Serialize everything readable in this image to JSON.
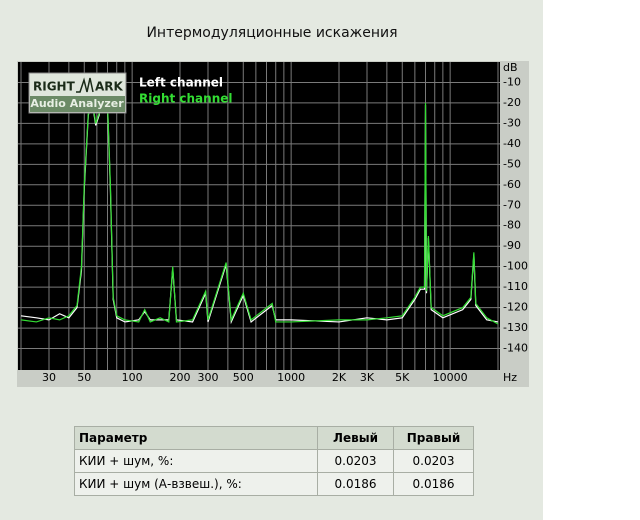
{
  "title": "Интермодуляционные искажения",
  "logo": {
    "word1": "RIGHT",
    "word2": "ARK",
    "subtitle": "Audio Analyzer"
  },
  "chart_data": {
    "type": "line",
    "xscale": "log",
    "grid": true,
    "legend": "top-left",
    "ylabel": "dB",
    "xlabel": "Hz",
    "xlim": [
      20,
      20000
    ],
    "ylim": [
      -150,
      0
    ],
    "xticks": [
      30,
      50,
      100,
      200,
      300,
      500,
      1000,
      {
        "value": 2000,
        "label": "2K"
      },
      {
        "value": 3000,
        "label": "3K"
      },
      {
        "value": 5000,
        "label": "5K"
      },
      10000
    ],
    "minor_xticks": [
      20,
      40,
      60,
      70,
      80,
      90,
      400,
      600,
      700,
      800,
      900,
      4000,
      6000,
      7000,
      8000,
      9000,
      20000
    ],
    "yticks": [
      -10,
      -20,
      -30,
      -40,
      -50,
      -60,
      -70,
      -80,
      -90,
      -100,
      -110,
      -120,
      -130,
      -140
    ],
    "x": [
      20,
      25,
      30,
      35,
      40,
      45,
      48,
      50,
      53,
      56,
      59,
      62,
      66,
      70,
      73,
      76,
      80,
      90,
      110,
      120,
      130,
      150,
      170,
      180,
      190,
      240,
      290,
      300,
      390,
      420,
      500,
      560,
      760,
      800,
      1000,
      2000,
      3000,
      4000,
      5000,
      6000,
      6500,
      6900,
      7000,
      7100,
      7300,
      7600,
      9000,
      12000,
      13500,
      14100,
      14500,
      17000,
      20000
    ],
    "series": [
      {
        "name": "Left channel",
        "color": "#ffffff",
        "values": [
          -124,
          -125,
          -126,
          -123,
          -125,
          -120,
          -102,
          -62,
          -26,
          -19,
          -31,
          -26,
          -13,
          -21,
          -62,
          -116,
          -125,
          -127,
          -126,
          -122,
          -126,
          -126,
          -126,
          -101,
          -126,
          -127,
          -113,
          -127,
          -99,
          -127,
          -114,
          -127,
          -119,
          -126,
          -126,
          -127,
          -125,
          -126,
          -125,
          -116,
          -111,
          -111,
          -21,
          -113,
          -86,
          -121,
          -125,
          -121,
          -116,
          -94,
          -119,
          -126,
          -127
        ]
      },
      {
        "name": "Right channel",
        "color": "#33dd33",
        "values": [
          -126,
          -127,
          -125,
          -126,
          -124,
          -119,
          -100,
          -60,
          -25,
          -18,
          -30,
          -25,
          -12,
          -20,
          -60,
          -115,
          -124,
          -126,
          -127,
          -121,
          -127,
          -125,
          -127,
          -100,
          -127,
          -126,
          -112,
          -126,
          -98,
          -126,
          -113,
          -126,
          -118,
          -127,
          -127,
          -126,
          -126,
          -125,
          -124,
          -115,
          -110,
          -110,
          -20,
          -112,
          -85,
          -120,
          -124,
          -120,
          -115,
          -93,
          -118,
          -125,
          -128
        ]
      }
    ]
  },
  "table": {
    "header": [
      "Параметр",
      "Левый",
      "Правый"
    ],
    "rows": [
      [
        "КИИ + шум, %:",
        "0.0203",
        "0.0203"
      ],
      [
        "КИИ + шум (А-взвеш.), %:",
        "0.0186",
        "0.0186"
      ]
    ]
  }
}
